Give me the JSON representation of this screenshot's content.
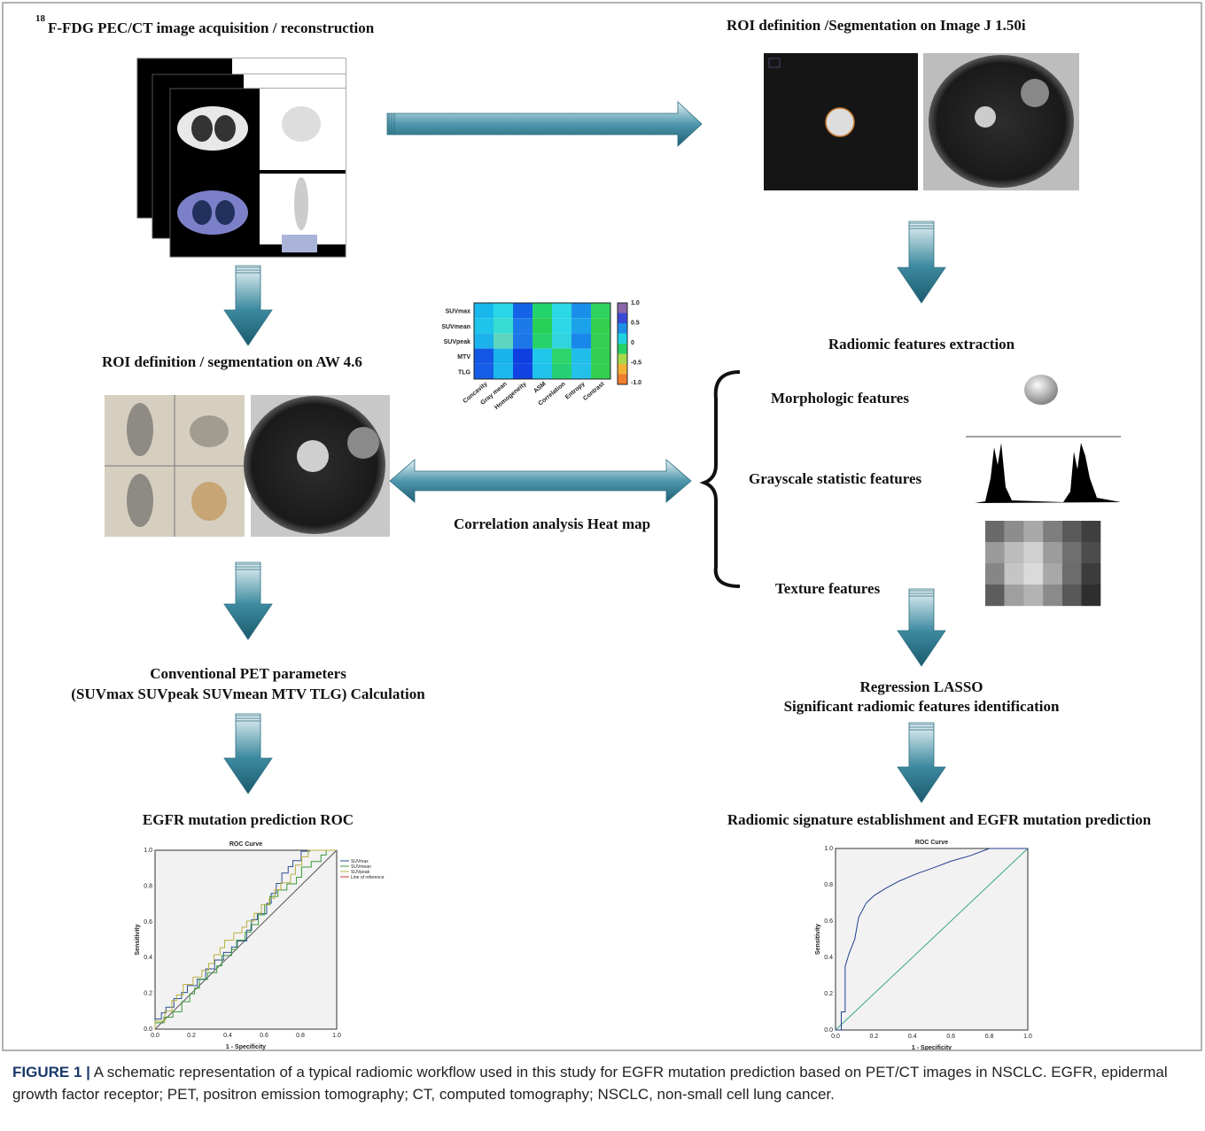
{
  "steps": {
    "isotope": "18",
    "acquisition": "F-FDG PEC/CT image acquisition / reconstruction",
    "roi_imagej": "ROI definition /Segmentation on Image J 1.50i",
    "roi_aw": "ROI definition / segmentation on AW 4.6",
    "radiomic_extraction": "Radiomic features extraction",
    "heatmap_caption": "Correlation analysis Heat map",
    "conventional": [
      "Conventional PET parameters",
      "(SUVmax SUVpeak SUVmean MTV TLG) Calculation"
    ],
    "lasso": [
      "Regression LASSO",
      "Significant radiomic features identification"
    ],
    "roc_left_title": "EGFR mutation prediction ROC",
    "roc_right_title": "Radiomic signature establishment and EGFR mutation prediction"
  },
  "features": [
    "Morphologic features",
    "Grayscale statistic features",
    "Texture features"
  ],
  "heatmap": {
    "rows": [
      "SUVmax",
      "SUVmean",
      "SUVpeak",
      "MTV",
      "TLG"
    ],
    "cols": [
      "Concavity",
      "Gray mean",
      "Homogeneity",
      "ASM",
      "Correlation",
      "Entropy",
      "Contrast"
    ],
    "colorbar_ticks": [
      "1.0",
      "0.5",
      "0",
      "-0.5",
      "-1.0"
    ]
  },
  "roc_left": {
    "title": "ROC Curve",
    "x_label": "1 - Specificity",
    "y_label": "Sensitivity",
    "legend": [
      "SUVmax",
      "SUVmean",
      "SUVpeak",
      "Line of reference"
    ],
    "ticks": [
      "0.0",
      "0.2",
      "0.4",
      "0.6",
      "0.8",
      "1.0"
    ]
  },
  "roc_right": {
    "title": "ROC Curve",
    "x_label": "1 - Specificity",
    "y_label": "Sensitivity",
    "ticks": [
      "0.0",
      "0.2",
      "0.4",
      "0.6",
      "0.8",
      "1.0"
    ]
  },
  "caption": {
    "label": "FIGURE 1 |",
    "text": "A schematic representation of a typical radiomic workflow used in this study for EGFR mutation prediction based on PET/CT images in NSCLC. EGFR, epidermal growth factor receptor; PET, positron emission tomography; CT, computed tomography; NSCLC, non-small cell lung cancer."
  }
}
